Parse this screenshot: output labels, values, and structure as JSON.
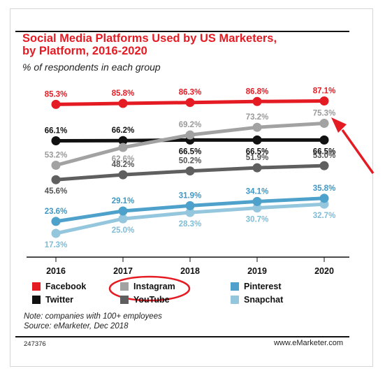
{
  "chart_data": {
    "type": "line",
    "title_line1": "Social Media Platforms Used by US Marketers,",
    "title_line2": "by Platform, 2016-2020",
    "subtitle": "% of respondents in each group",
    "x": [
      "2016",
      "2017",
      "2018",
      "2019",
      "2020"
    ],
    "ylim": [
      0,
      100
    ],
    "series": [
      {
        "name": "Facebook",
        "color": "#e51b24",
        "values": [
          85.3,
          85.8,
          86.3,
          86.8,
          87.1
        ],
        "labels": [
          "85.3%",
          "85.8%",
          "86.3%",
          "86.8%",
          "87.1%"
        ]
      },
      {
        "name": "Instagram",
        "color": "#a2a2a2",
        "values": [
          53.2,
          62.6,
          69.2,
          73.2,
          75.3
        ],
        "labels": [
          "53.2%",
          "62.6%",
          "69.2%",
          "73.2%",
          "75.3%"
        ]
      },
      {
        "name": "Pinterest",
        "color": "#4ea1cb",
        "values": [
          23.6,
          29.1,
          31.9,
          34.1,
          35.8
        ],
        "labels": [
          "23.6%",
          "29.1%",
          "31.9%",
          "34.1%",
          "35.8%"
        ]
      },
      {
        "name": "Twitter",
        "color": "#111111",
        "values": [
          66.1,
          66.2,
          66.5,
          66.5,
          66.5
        ],
        "labels": [
          "66.1%",
          "66.2%",
          "66.5%",
          "66.5%",
          "66.5%"
        ]
      },
      {
        "name": "YouTube",
        "color": "#5f5f5f",
        "values": [
          45.6,
          48.2,
          50.2,
          51.9,
          53.0
        ],
        "labels": [
          "45.6%",
          "48.2%",
          "50.2%",
          "51.9%",
          "53.0%"
        ]
      },
      {
        "name": "Snapchat",
        "color": "#94c7de",
        "values": [
          17.3,
          25.0,
          28.3,
          30.7,
          32.7
        ],
        "labels": [
          "17.3%",
          "25.0%",
          "28.3%",
          "30.7%",
          "32.7%"
        ]
      }
    ],
    "legend_position": "bottom",
    "grid": false
  },
  "footnote": {
    "note": "Note: companies with 100+ employees",
    "source": "Source: eMarketer, Dec 2018"
  },
  "chart_id": "247376",
  "brand": "www.eMarketer.com",
  "annotations": {
    "arrow_color": "#e51b24",
    "circle_target": "Instagram"
  }
}
